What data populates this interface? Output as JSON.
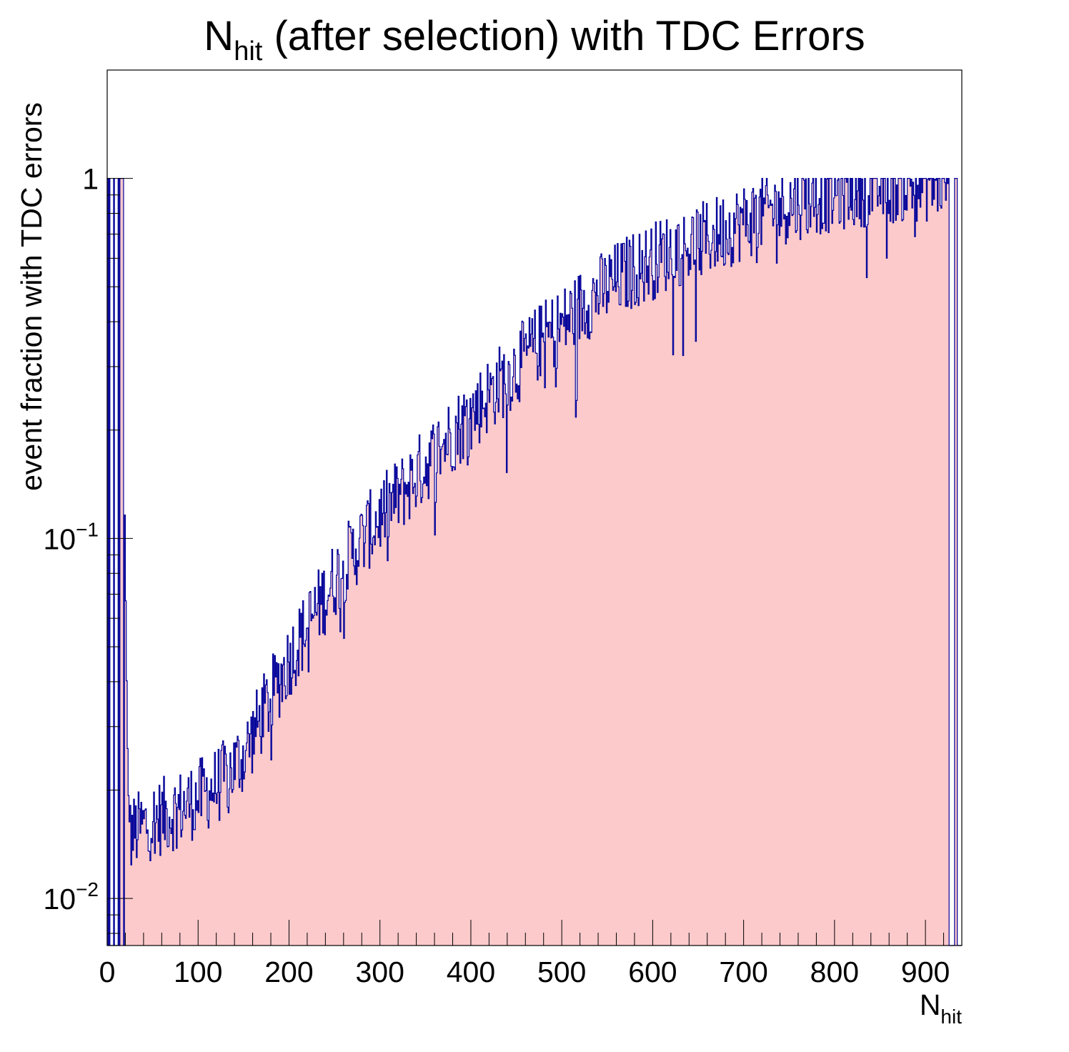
{
  "chart_data": {
    "type": "histogram",
    "title": {
      "main": "N",
      "sub": "hit",
      "rest": " (after selection) with TDC Errors"
    },
    "xlabel": {
      "main": "N",
      "sub": "hit"
    },
    "ylabel": "event fraction with TDC errors",
    "xlim": [
      0,
      940
    ],
    "ylim": [
      0.0074,
      2.0
    ],
    "log_y": true,
    "x_ticks": [
      "0",
      "100",
      "200",
      "300",
      "400",
      "500",
      "600",
      "700",
      "800",
      "900"
    ],
    "y_ticks": [
      {
        "base": "1",
        "exp": ""
      },
      {
        "base": "10",
        "exp": "−1"
      },
      {
        "base": "10",
        "exp": "−2"
      }
    ],
    "bin_width": 1,
    "fill_color": "#fccacb",
    "line_color": "#000099",
    "sampled_trend": {
      "description": "",
      "x": [
        0,
        5,
        8,
        11,
        14,
        17,
        19,
        20,
        21,
        23,
        25,
        50,
        75,
        100,
        125,
        150,
        175,
        200,
        225,
        250,
        275,
        300,
        325,
        350,
        375,
        400,
        425,
        450,
        475,
        500,
        525,
        550,
        575,
        600,
        625,
        650,
        675,
        700,
        725,
        750,
        775,
        800,
        825,
        850,
        875,
        900,
        925,
        928,
        929,
        935,
        936,
        940
      ],
      "y": [
        1.0,
        1.0,
        1.0,
        1.0,
        1.0,
        0.45,
        0.15,
        0.09,
        0.05,
        0.021,
        0.015,
        0.0165,
        0.0175,
        0.019,
        0.021,
        0.025,
        0.034,
        0.046,
        0.06,
        0.077,
        0.095,
        0.115,
        0.135,
        0.16,
        0.19,
        0.22,
        0.26,
        0.3,
        0.35,
        0.39,
        0.45,
        0.5,
        0.55,
        0.59,
        0.64,
        0.66,
        0.71,
        0.76,
        0.81,
        0.85,
        0.89,
        0.91,
        0.94,
        0.95,
        0.97,
        0.97,
        1.0,
        0.0,
        0.0,
        1.0,
        0.0,
        0.0
      ]
    }
  }
}
